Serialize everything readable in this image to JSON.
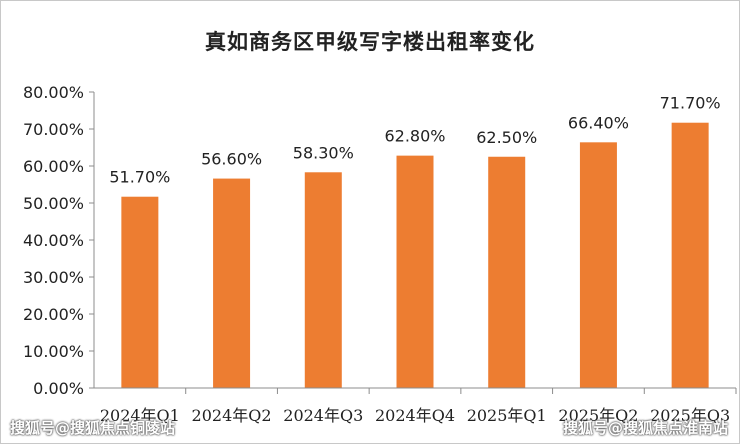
{
  "chart_data": {
    "type": "bar",
    "title": "真如商务区甲级写字楼出租率变化",
    "categories": [
      "2024年Q1",
      "2024年Q2",
      "2024年Q3",
      "2024年Q4",
      "2025年Q1",
      "2025年Q2",
      "2025年Q3"
    ],
    "values": [
      51.7,
      56.6,
      58.3,
      62.8,
      62.5,
      66.4,
      71.7
    ],
    "data_labels": [
      "51.70%",
      "56.60%",
      "58.30%",
      "62.80%",
      "62.50%",
      "66.40%",
      "71.70%"
    ],
    "yticks": [
      "0.00%",
      "10.00%",
      "20.00%",
      "30.00%",
      "40.00%",
      "50.00%",
      "60.00%",
      "70.00%",
      "80.00%"
    ],
    "ylim": [
      0,
      80
    ],
    "grid": false,
    "legend": "none",
    "bar_color": "#ED7D31"
  },
  "watermarks": {
    "left": "搜狐号@搜狐焦点铜陵站",
    "right": "搜狐号@搜狐焦点淮南站"
  }
}
